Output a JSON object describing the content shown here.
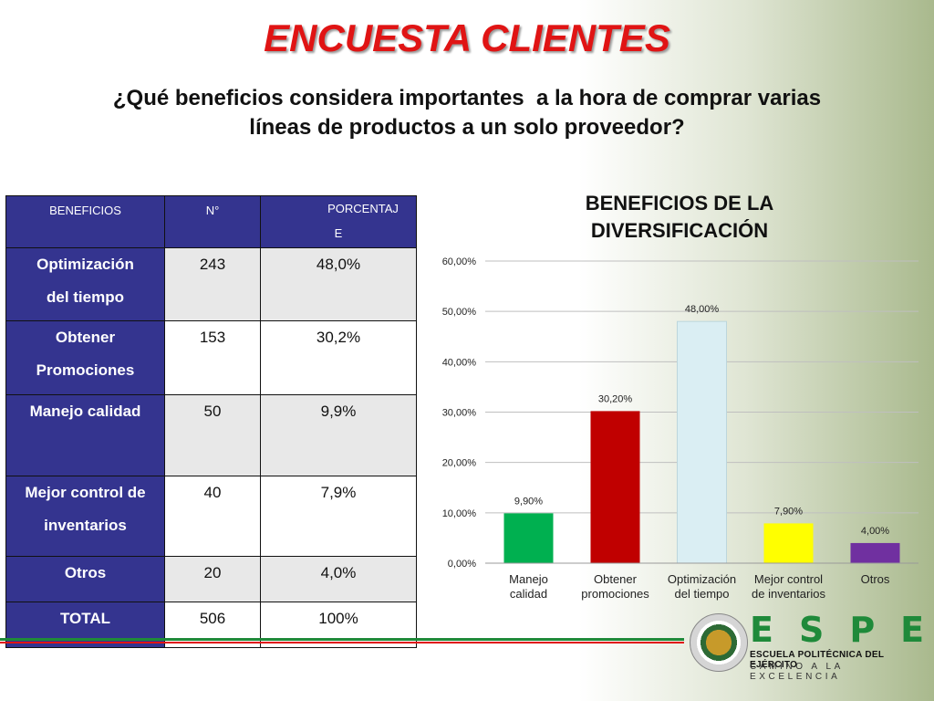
{
  "slide": {
    "title": "ENCUESTA CLIENTES",
    "question_line1": "¿Qué beneficios considera importantes  a la hora de comprar varias",
    "question_line2": "líneas de productos a un solo proveedor?"
  },
  "table": {
    "headers": [
      "BENEFICIOS",
      "N°",
      "PORCENTAJ",
      "E"
    ],
    "rows": [
      {
        "label1": "Optimización",
        "label2": "del tiempo",
        "n": "243",
        "pct": "48,0%"
      },
      {
        "label1": "Obtener",
        "label2": "Promociones",
        "n": "153",
        "pct": "30,2%"
      },
      {
        "label1": "Manejo calidad",
        "label2": "",
        "n": "50",
        "pct": "9,9%"
      },
      {
        "label1": "Mejor control de",
        "label2": "inventarios",
        "n": "40",
        "pct": "7,9%"
      },
      {
        "label1": "Otros",
        "label2": "",
        "n": "20",
        "pct": "4,0%"
      },
      {
        "label1": "TOTAL",
        "label2": "",
        "n": "506",
        "pct": "100%"
      }
    ]
  },
  "chart_data": {
    "type": "bar",
    "title_line1": "BENEFICIOS DE LA",
    "title_line2": "DIVERSIFICACIÓN",
    "categories": [
      [
        "Manejo",
        "calidad"
      ],
      [
        "Obtener",
        "promociones"
      ],
      [
        "Optimización",
        "del tiempo"
      ],
      [
        "Mejor control",
        "de inventarios"
      ],
      [
        "Otros"
      ]
    ],
    "values": [
      9.9,
      30.2,
      48.0,
      7.9,
      4.0
    ],
    "value_labels": [
      "9,90%",
      "30,20%",
      "48,00%",
      "7,90%",
      "4,00%"
    ],
    "colors": [
      "#00b050",
      "#c00000",
      "#daeef3",
      "#ffff00",
      "#7030a0"
    ],
    "ylim": [
      0,
      60
    ],
    "yticks": [
      0,
      10,
      20,
      30,
      40,
      50,
      60
    ],
    "ytick_labels": [
      "0,00%",
      "10,00%",
      "20,00%",
      "30,00%",
      "40,00%",
      "50,00%",
      "60,00%"
    ],
    "grid": true,
    "gridline_color": "#bfbfbf",
    "legend": "none"
  },
  "logo": {
    "letters": "ESPE",
    "line1": "ESCUELA POLITÉCNICA DEL EJÉRCITO",
    "line2": "CAMINO A LA EXCELENCIA",
    "color": "#1f8a3a"
  }
}
